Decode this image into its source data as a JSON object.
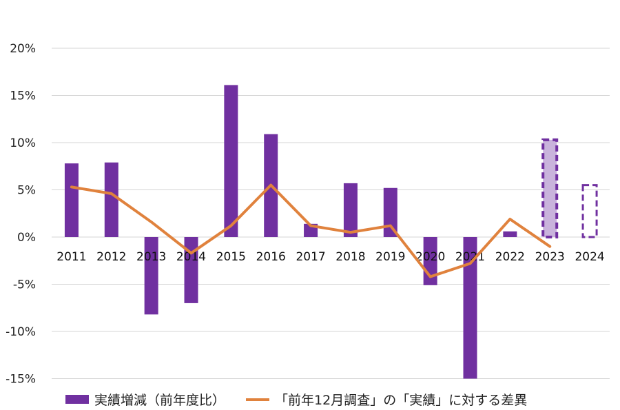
{
  "chart_data": {
    "type": "bar",
    "title": "",
    "xlabel": "",
    "ylabel": "",
    "ylim": [
      -15,
      20
    ],
    "yticks": [
      -15,
      -10,
      -5,
      0,
      5,
      10,
      15,
      20
    ],
    "ytick_labels": [
      "-15%",
      "-10%",
      "-5%",
      "0%",
      "5%",
      "10%",
      "15%",
      "20%"
    ],
    "categories": [
      "2011",
      "2012",
      "2013",
      "2014",
      "2015",
      "2016",
      "2017",
      "2018",
      "2019",
      "2020",
      "2021",
      "2022",
      "2023",
      "2024"
    ],
    "grid": true,
    "legend_position": "bottom",
    "series": [
      {
        "name": "実績増減（前年度比）",
        "type": "bar",
        "color": "#7030a0",
        "values": [
          7.8,
          7.9,
          -8.2,
          -7.0,
          16.1,
          10.9,
          1.4,
          5.7,
          5.2,
          -5.1,
          -15.0,
          0.6,
          10.3,
          5.5
        ],
        "estimated_styles": [
          "solid",
          "solid",
          "solid",
          "solid",
          "solid",
          "solid",
          "solid",
          "solid",
          "solid",
          "solid",
          "solid",
          "solid",
          "dashed-light",
          "dashed-outline"
        ]
      },
      {
        "name": "「前年12月調査」の「実績」に対する差異",
        "type": "line",
        "color": "#e0823d",
        "values": [
          5.3,
          4.6,
          1.6,
          -1.7,
          1.2,
          5.5,
          1.2,
          0.5,
          1.2,
          -4.2,
          -2.8,
          1.9,
          -1.0,
          null
        ]
      }
    ]
  }
}
